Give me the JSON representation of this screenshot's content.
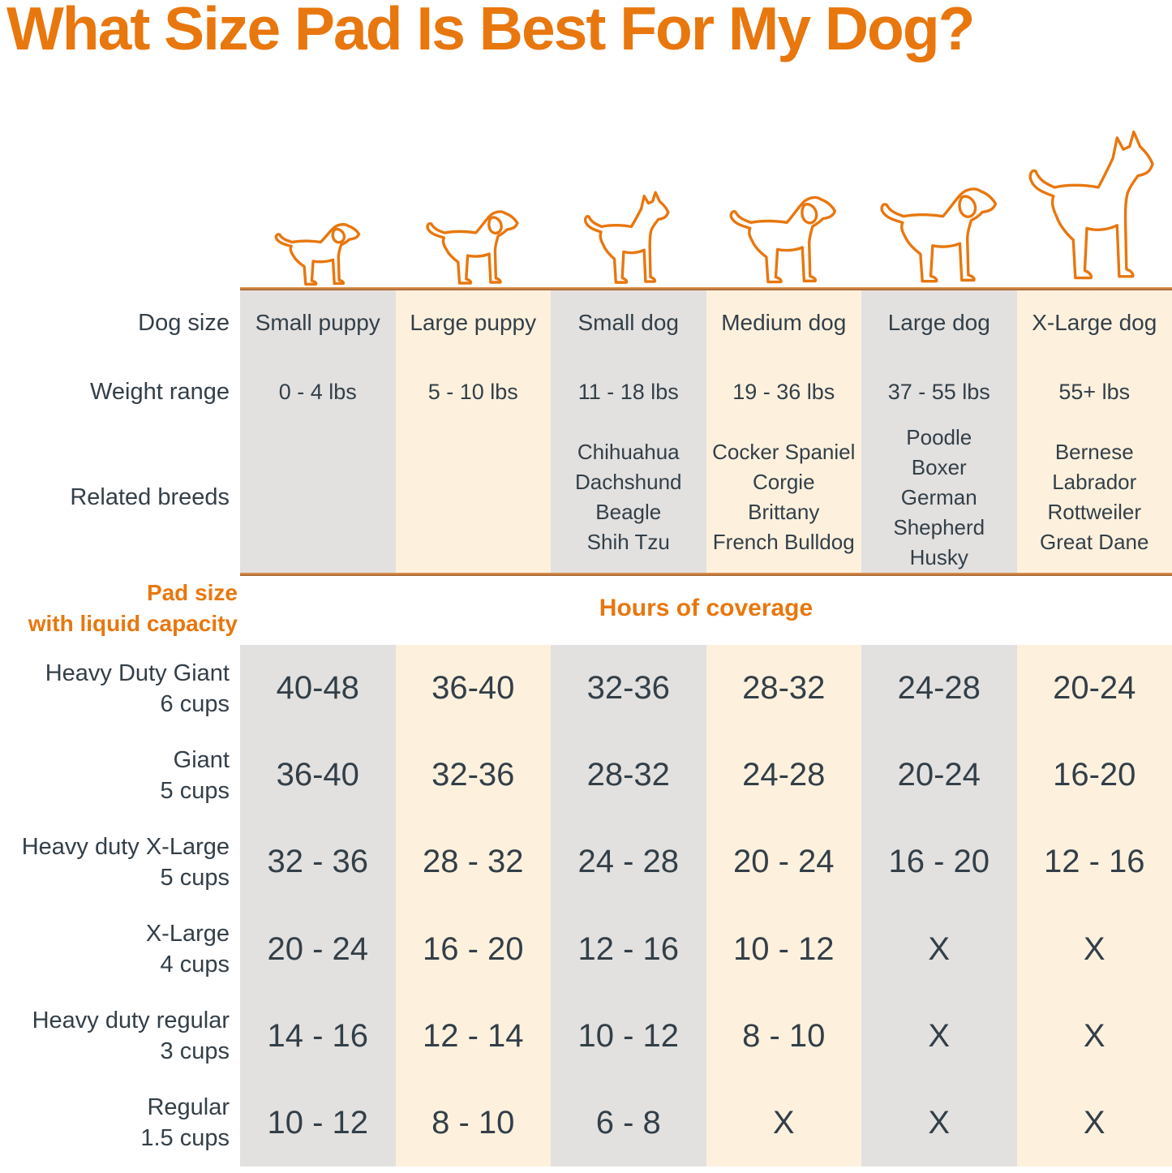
{
  "title": "What Size Pad Is Best For My Dog?",
  "colors": {
    "orange": "#E8770E",
    "text_dark": "#333F48",
    "column_gray": "#E2E1E0",
    "column_cream": "#FDF1DE",
    "divider_orange": "#B06A33"
  },
  "row_labels": {
    "dog_size": "Dog size",
    "weight_range": "Weight range",
    "related_breeds": "Related breeds",
    "pad_size_line1": "Pad size",
    "pad_size_line2": "with liquid capacity",
    "hours_of_coverage": "Hours of coverage"
  },
  "columns": [
    {
      "icon": "small-puppy-dog-icon",
      "size": "Small puppy",
      "weight": "0 - 4 lbs",
      "breeds": []
    },
    {
      "icon": "large-puppy-dog-icon",
      "size": "Large puppy",
      "weight": "5 - 10 lbs",
      "breeds": []
    },
    {
      "icon": "small-dog-icon",
      "size": "Small dog",
      "weight": "11 - 18 lbs",
      "breeds": [
        "Chihuahua",
        "Dachshund",
        "Beagle",
        "Shih Tzu"
      ]
    },
    {
      "icon": "medium-dog-icon",
      "size": "Medium dog",
      "weight": "19 - 36 lbs",
      "breeds": [
        "Cocker Spaniel",
        "Corgie",
        "Brittany",
        "French Bulldog"
      ]
    },
    {
      "icon": "large-dog-icon",
      "size": "Large dog",
      "weight": "37 - 55 lbs",
      "breeds": [
        "Poodle",
        "Boxer",
        "German Shepherd",
        "Husky"
      ]
    },
    {
      "icon": "x-large-dog-icon",
      "size": "X-Large dog",
      "weight": "55+ lbs",
      "breeds": [
        "Bernese",
        "Labrador",
        "Rottweiler",
        "Great Dane"
      ]
    }
  ],
  "pads": [
    {
      "name": "Heavy Duty Giant",
      "capacity": "6 cups",
      "hours": [
        "40-48",
        "36-40",
        "32-36",
        "28-32",
        "24-28",
        "20-24"
      ]
    },
    {
      "name": "Giant",
      "capacity": "5 cups",
      "hours": [
        "36-40",
        "32-36",
        "28-32",
        "24-28",
        "20-24",
        "16-20"
      ]
    },
    {
      "name": "Heavy duty X-Large",
      "capacity": "5 cups",
      "hours": [
        "32 - 36",
        "28 - 32",
        "24 - 28",
        "20 - 24",
        "16 - 20",
        "12 - 16"
      ]
    },
    {
      "name": "X-Large",
      "capacity": "4 cups",
      "hours": [
        "20 - 24",
        "16 - 20",
        "12 - 16",
        "10 - 12",
        "X",
        "X"
      ]
    },
    {
      "name": "Heavy duty regular",
      "capacity": "3 cups",
      "hours": [
        "14 - 16",
        "12 - 14",
        "10 - 12",
        "8 - 10",
        "X",
        "X"
      ]
    },
    {
      "name": "Regular",
      "capacity": "1.5 cups",
      "hours": [
        "10 - 12",
        "8 - 10",
        "6 - 8",
        "X",
        "X",
        "X"
      ]
    }
  ],
  "chart_data": {
    "type": "table",
    "title": "What Size Pad Is Best For My Dog?",
    "columns": [
      "Small puppy",
      "Large puppy",
      "Small dog",
      "Medium dog",
      "Large dog",
      "X-Large dog"
    ],
    "weight_ranges": [
      "0 - 4 lbs",
      "5 - 10 lbs",
      "11 - 18 lbs",
      "19 - 36 lbs",
      "37 - 55 lbs",
      "55+ lbs"
    ],
    "related_breeds": [
      [],
      [],
      [
        "Chihuahua",
        "Dachshund",
        "Beagle",
        "Shih Tzu"
      ],
      [
        "Cocker Spaniel",
        "Corgie",
        "Brittany",
        "French Bulldog"
      ],
      [
        "Poodle",
        "Boxer",
        "German Shepherd",
        "Husky"
      ],
      [
        "Bernese",
        "Labrador",
        "Rottweiler",
        "Great Dane"
      ]
    ],
    "value_unit": "Hours of coverage",
    "rows": [
      {
        "pad": "Heavy Duty Giant",
        "capacity": "6 cups",
        "hours": [
          "40-48",
          "36-40",
          "32-36",
          "28-32",
          "24-28",
          "20-24"
        ]
      },
      {
        "pad": "Giant",
        "capacity": "5 cups",
        "hours": [
          "36-40",
          "32-36",
          "28-32",
          "24-28",
          "20-24",
          "16-20"
        ]
      },
      {
        "pad": "Heavy duty X-Large",
        "capacity": "5 cups",
        "hours": [
          "32 - 36",
          "28 - 32",
          "24 - 28",
          "20 - 24",
          "16 - 20",
          "12 - 16"
        ]
      },
      {
        "pad": "X-Large",
        "capacity": "4 cups",
        "hours": [
          "20 - 24",
          "16 - 20",
          "12 - 16",
          "10 - 12",
          "X",
          "X"
        ]
      },
      {
        "pad": "Heavy duty regular",
        "capacity": "3 cups",
        "hours": [
          "14 - 16",
          "12 - 14",
          "10 - 12",
          "8 - 10",
          "X",
          "X"
        ]
      },
      {
        "pad": "Regular",
        "capacity": "1.5 cups",
        "hours": [
          "10 - 12",
          "8 - 10",
          "6 - 8",
          "X",
          "X",
          "X"
        ]
      }
    ]
  }
}
